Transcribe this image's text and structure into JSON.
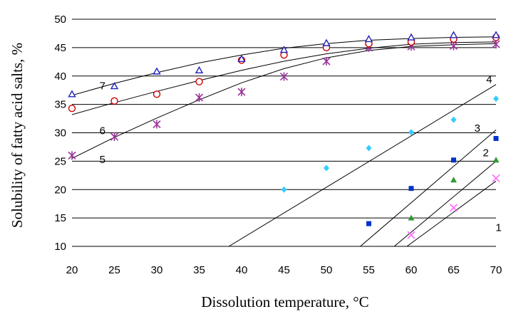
{
  "chart_data": {
    "type": "scatter",
    "xlabel": "Dissolution temperature, °C",
    "ylabel": "Solubility of fatty acid salts, %",
    "xlim": [
      20,
      70
    ],
    "ylim": [
      10,
      50
    ],
    "x_ticks": [
      "20",
      "25",
      "30",
      "35",
      "40",
      "45",
      "50",
      "55",
      "60",
      "65",
      "70"
    ],
    "y_ticks": [
      "10",
      "15",
      "20",
      "25",
      "30",
      "35",
      "40",
      "45",
      "50"
    ],
    "grid": "horizontal",
    "series": [
      {
        "name": "1",
        "marker": "x",
        "color": "#ff66ff",
        "x": [
          60,
          65,
          70
        ],
        "y": [
          12,
          16.8,
          22
        ],
        "fit_x": [
          59.5,
          70
        ],
        "fit_y": [
          10,
          21.5
        ]
      },
      {
        "name": "2",
        "marker": "triangle",
        "color": "#339933",
        "x": [
          60,
          65,
          70
        ],
        "y": [
          15,
          21.7,
          25.2
        ],
        "fit_x": [
          58,
          70
        ],
        "fit_y": [
          10,
          25
        ]
      },
      {
        "name": "3",
        "marker": "square",
        "color": "#0033cc",
        "x": [
          55,
          60,
          65,
          70
        ],
        "y": [
          14,
          20.2,
          25.2,
          29
        ],
        "fit_x": [
          54,
          70
        ],
        "fit_y": [
          10,
          30.5
        ]
      },
      {
        "name": "4",
        "marker": "diamond",
        "color": "#33ccff",
        "x": [
          45,
          50,
          55,
          60,
          65,
          70
        ],
        "y": [
          20,
          23.8,
          27.3,
          30.1,
          32.3,
          36
        ],
        "fit_x": [
          38.5,
          70
        ],
        "fit_y": [
          10,
          38.5
        ]
      },
      {
        "name": "5",
        "marker": "asterisk",
        "color": "#993399",
        "x": [
          20,
          25,
          30,
          35,
          40,
          45,
          50,
          55,
          60,
          65,
          70
        ],
        "y": [
          26,
          29.3,
          31.5,
          36.2,
          37.2,
          39.9,
          42.6,
          45,
          45.2,
          45.3,
          45.6
        ],
        "fit_x": [
          20,
          25,
          30,
          35,
          40,
          45,
          50,
          55,
          60,
          65,
          70
        ],
        "fit_y": [
          25.5,
          29.2,
          32.6,
          35.8,
          38.8,
          41.3,
          43.2,
          44.5,
          45.2,
          45.5,
          45.7
        ]
      },
      {
        "name": "6",
        "marker": "circle",
        "color": "#cc0000",
        "x": [
          20,
          25,
          30,
          35,
          40,
          45,
          50,
          55,
          60,
          65,
          70
        ],
        "y": [
          34.3,
          35.6,
          36.8,
          39,
          42.8,
          43.7,
          45,
          45.7,
          46,
          46.5,
          46.8
        ],
        "fit_x": [
          20,
          25,
          30,
          35,
          40,
          45,
          50,
          55,
          60,
          65,
          70
        ],
        "fit_y": [
          33.2,
          35.3,
          37.3,
          39.2,
          41,
          42.6,
          43.9,
          44.9,
          45.6,
          45.9,
          46
        ]
      },
      {
        "name": "7",
        "marker": "triangle-open",
        "color": "#2222bb",
        "x": [
          20,
          25,
          30,
          35,
          40,
          45,
          50,
          55,
          60,
          65,
          70
        ],
        "y": [
          36.8,
          38.2,
          40.8,
          41,
          43,
          44.6,
          45.8,
          46.5,
          46.8,
          47.2,
          47.2
        ],
        "fit_x": [
          20,
          25,
          30,
          35,
          40,
          45,
          50,
          55,
          60,
          65,
          70
        ],
        "fit_y": [
          36.6,
          38.7,
          40.6,
          42.3,
          43.7,
          44.9,
          45.7,
          46.3,
          46.6,
          46.8,
          46.9
        ]
      }
    ],
    "curve_labels": [
      {
        "text": "1",
        "x": 70.3,
        "y": 13.3
      },
      {
        "text": "2",
        "x": 68.8,
        "y": 26.5
      },
      {
        "text": "3",
        "x": 67.8,
        "y": 30.8
      },
      {
        "text": "4",
        "x": 69.2,
        "y": 39.4
      },
      {
        "text": "5",
        "x": 23.6,
        "y": 25.3
      },
      {
        "text": "6",
        "x": 23.6,
        "y": 30.4
      },
      {
        "text": "7",
        "x": 23.6,
        "y": 38.3
      }
    ]
  }
}
